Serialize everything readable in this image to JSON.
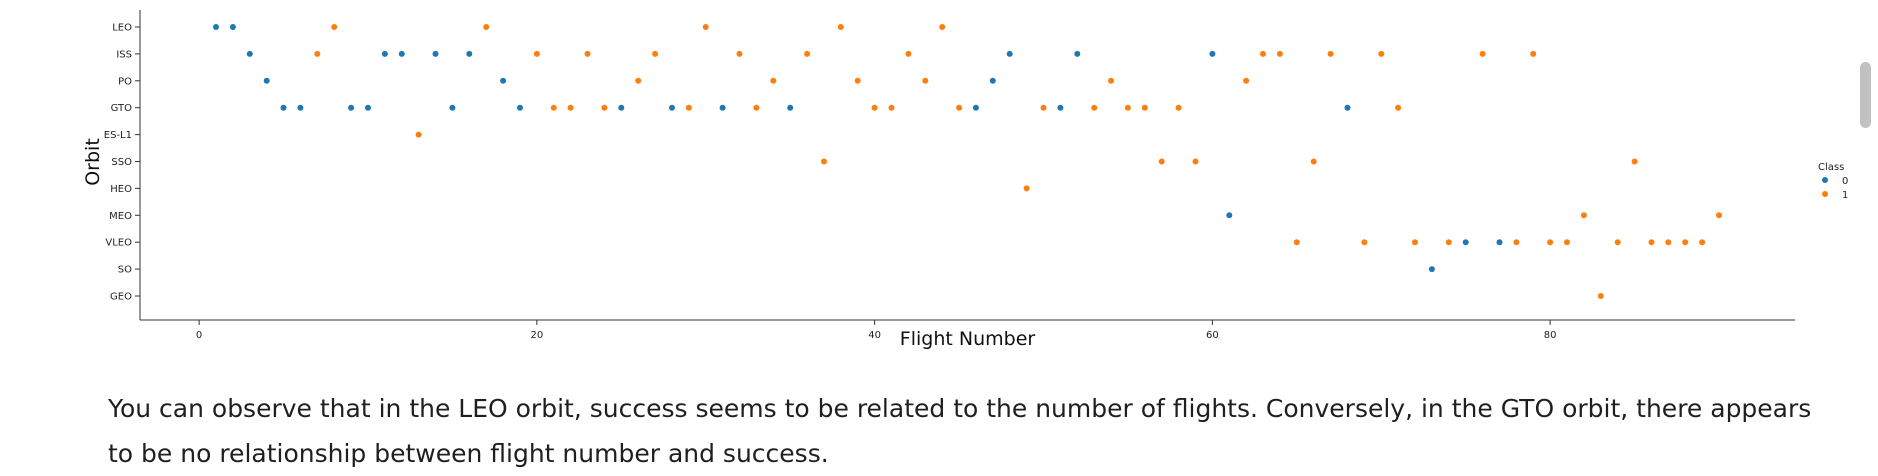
{
  "notebook": {
    "markdown_text": "You can observe that in the LEO orbit, success seems to be related to the number of flights. Conversely, in the GTO orbit, there appears to be no relationship between flight number and success."
  },
  "colors": {
    "class0": "#1f77b4",
    "class1": "#ff7f0e",
    "axis": "#333333",
    "scrollbar": "#c1c1c1"
  },
  "chart_data": {
    "type": "scatter",
    "xlabel": "Flight Number",
    "ylabel": "Orbit",
    "xlim": [
      -3.5,
      94.5
    ],
    "xticks": [
      0,
      20,
      40,
      60,
      80
    ],
    "categories": [
      "LEO",
      "ISS",
      "PO",
      "GTO",
      "ES-L1",
      "SSO",
      "HEO",
      "MEO",
      "VLEO",
      "SO",
      "GEO"
    ],
    "legend": {
      "title": "Class",
      "entries": [
        "0",
        "1"
      ],
      "placement": "right"
    },
    "series": [
      {
        "name": "0",
        "points": [
          [
            1,
            "LEO"
          ],
          [
            2,
            "LEO"
          ],
          [
            3,
            "ISS"
          ],
          [
            4,
            "PO"
          ],
          [
            5,
            "GTO"
          ],
          [
            6,
            "GTO"
          ],
          [
            9,
            "GTO"
          ],
          [
            10,
            "GTO"
          ],
          [
            11,
            "ISS"
          ],
          [
            12,
            "ISS"
          ],
          [
            14,
            "ISS"
          ],
          [
            15,
            "GTO"
          ],
          [
            16,
            "ISS"
          ],
          [
            18,
            "PO"
          ],
          [
            19,
            "GTO"
          ],
          [
            25,
            "GTO"
          ],
          [
            28,
            "GTO"
          ],
          [
            31,
            "GTO"
          ],
          [
            35,
            "GTO"
          ],
          [
            46,
            "GTO"
          ],
          [
            47,
            "PO"
          ],
          [
            48,
            "ISS"
          ],
          [
            51,
            "GTO"
          ],
          [
            52,
            "ISS"
          ],
          [
            60,
            "ISS"
          ],
          [
            61,
            "MEO"
          ],
          [
            68,
            "GTO"
          ],
          [
            73,
            "SO"
          ],
          [
            75,
            "VLEO"
          ],
          [
            77,
            "VLEO"
          ]
        ]
      },
      {
        "name": "1",
        "points": [
          [
            7,
            "ISS"
          ],
          [
            8,
            "LEO"
          ],
          [
            13,
            "ES-L1"
          ],
          [
            17,
            "LEO"
          ],
          [
            20,
            "ISS"
          ],
          [
            21,
            "GTO"
          ],
          [
            22,
            "GTO"
          ],
          [
            23,
            "ISS"
          ],
          [
            24,
            "GTO"
          ],
          [
            26,
            "PO"
          ],
          [
            27,
            "ISS"
          ],
          [
            29,
            "GTO"
          ],
          [
            30,
            "LEO"
          ],
          [
            32,
            "ISS"
          ],
          [
            33,
            "GTO"
          ],
          [
            34,
            "PO"
          ],
          [
            36,
            "ISS"
          ],
          [
            37,
            "SSO"
          ],
          [
            38,
            "LEO"
          ],
          [
            39,
            "PO"
          ],
          [
            40,
            "GTO"
          ],
          [
            41,
            "GTO"
          ],
          [
            42,
            "ISS"
          ],
          [
            43,
            "PO"
          ],
          [
            44,
            "LEO"
          ],
          [
            45,
            "GTO"
          ],
          [
            49,
            "HEO"
          ],
          [
            50,
            "GTO"
          ],
          [
            53,
            "GTO"
          ],
          [
            54,
            "PO"
          ],
          [
            55,
            "GTO"
          ],
          [
            56,
            "GTO"
          ],
          [
            57,
            "SSO"
          ],
          [
            58,
            "GTO"
          ],
          [
            59,
            "SSO"
          ],
          [
            62,
            "PO"
          ],
          [
            63,
            "ISS"
          ],
          [
            64,
            "ISS"
          ],
          [
            65,
            "VLEO"
          ],
          [
            66,
            "SSO"
          ],
          [
            67,
            "ISS"
          ],
          [
            69,
            "VLEO"
          ],
          [
            70,
            "ISS"
          ],
          [
            71,
            "GTO"
          ],
          [
            72,
            "VLEO"
          ],
          [
            74,
            "VLEO"
          ],
          [
            76,
            "ISS"
          ],
          [
            78,
            "VLEO"
          ],
          [
            79,
            "ISS"
          ],
          [
            80,
            "VLEO"
          ],
          [
            81,
            "VLEO"
          ],
          [
            82,
            "MEO"
          ],
          [
            83,
            "GEO"
          ],
          [
            84,
            "VLEO"
          ],
          [
            85,
            "SSO"
          ],
          [
            86,
            "VLEO"
          ],
          [
            87,
            "VLEO"
          ],
          [
            88,
            "VLEO"
          ],
          [
            89,
            "VLEO"
          ],
          [
            90,
            "MEO"
          ]
        ]
      }
    ]
  }
}
